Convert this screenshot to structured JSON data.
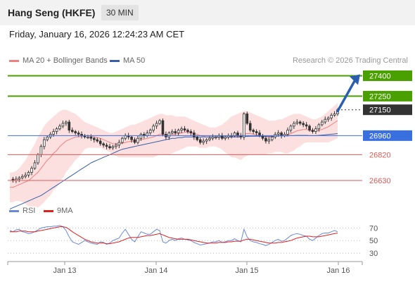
{
  "header": {
    "title": "Hang Seng (HKFE)",
    "timeframe": "30 MIN"
  },
  "datetime": "Friday, January 16, 2026 12:24:23 AM CET",
  "legend": {
    "ma20_bb": "MA 20 + Bollinger Bands",
    "ma50": "MA 50",
    "rsi": "RSI",
    "ma9": "9MA"
  },
  "credit": "Research © 2026 Trading Central",
  "colors": {
    "ma20": "#f08080",
    "bands": "#fbd6d6",
    "ma50": "#3a5fa8",
    "candle": "#333333",
    "resistance": "#4aa000",
    "support": "#e05a5a",
    "pivot": "#3a6fe0",
    "current": "#333333",
    "rsi": "#6a8ad8",
    "rsi_ma": "#dd2222",
    "arrow": "#2a5fb0"
  },
  "chart_data": {
    "type": "candlestick",
    "x_labels": [
      "Jan 13",
      "Jan 14",
      "Jan 15",
      "Jan 16"
    ],
    "y_range": [
      26480,
      27480
    ],
    "levels": [
      {
        "value": 27400,
        "label": "27400",
        "kind": "resistance"
      },
      {
        "value": 27250,
        "label": "27250",
        "kind": "resistance"
      },
      {
        "value": 27150,
        "label": "27150",
        "kind": "current"
      },
      {
        "value": 26960,
        "label": "26960",
        "kind": "pivot"
      },
      {
        "value": 26820,
        "label": "26820",
        "kind": "support"
      },
      {
        "value": 26630,
        "label": "26630",
        "kind": "support"
      }
    ],
    "close": [
      26640,
      26630,
      26640,
      26650,
      26660,
      26670,
      26690,
      26720,
      26760,
      26820,
      26880,
      26930,
      26950,
      26970,
      26990,
      27010,
      27030,
      27050,
      27060,
      27000,
      26990,
      26980,
      26970,
      26960,
      26950,
      26950,
      26940,
      26930,
      26920,
      26900,
      26890,
      26880,
      26870,
      26880,
      26890,
      26910,
      26940,
      26960,
      26950,
      26930,
      26910,
      26940,
      26970,
      26960,
      26980,
      27000,
      27030,
      27050,
      27070,
      26970,
      26950,
      26980,
      26990,
      26980,
      27000,
      27010,
      27000,
      26990,
      26980,
      26950,
      26930,
      26910,
      26920,
      26930,
      26940,
      26950,
      26950,
      26960,
      26940,
      26950,
      26960,
      26960,
      26980,
      26960,
      26950,
      27120,
      27050,
      27000,
      26990,
      26980,
      26960,
      26940,
      26920,
      26930,
      26950,
      26970,
      26980,
      26960,
      26970,
      27000,
      27030,
      27050,
      27060,
      27050,
      27040,
      27030,
      27000,
      26990,
      27010,
      27040,
      27060,
      27080,
      27090,
      27110,
      27120,
      27150
    ],
    "ma20": [
      26580,
      26580,
      26590,
      26600,
      26610,
      26620,
      26630,
      26650,
      26670,
      26690,
      26720,
      26750,
      26780,
      26800,
      26830,
      26850,
      26880,
      26900,
      26920,
      26930,
      26940,
      26950,
      26950,
      26955,
      26960,
      26960,
      26955,
      26950,
      26945,
      26940,
      26930,
      26920,
      26910,
      26900,
      26900,
      26900,
      26905,
      26910,
      26915,
      26920,
      26920,
      26925,
      26930,
      26935,
      26940,
      26945,
      26950,
      26960,
      26970,
      26970,
      26965,
      26965,
      26970,
      26970,
      26975,
      26980,
      26985,
      26985,
      26980,
      26975,
      26970,
      26960,
      26955,
      26950,
      26950,
      26950,
      26950,
      26950,
      26948,
      26948,
      26950,
      26950,
      26955,
      26955,
      26955,
      26970,
      26975,
      26975,
      26970,
      26965,
      26960,
      26955,
      26950,
      26950,
      26950,
      26955,
      26960,
      26960,
      26960,
      26965,
      26975,
      26985,
      26995,
      27000,
      27005,
      27005,
      27000,
      26995,
      26995,
      27000,
      27005,
      27015,
      27025,
      27040,
      27055,
      27070
    ],
    "bb_upper": [
      26690,
      26690,
      26700,
      26720,
      26750,
      26780,
      26820,
      26860,
      26900,
      26950,
      26990,
      27030,
      27060,
      27080,
      27100,
      27120,
      27140,
      27150,
      27150,
      27140,
      27130,
      27120,
      27100,
      27080,
      27060,
      27050,
      27040,
      27030,
      27020,
      27010,
      27000,
      26990,
      26980,
      26980,
      26990,
      27000,
      27010,
      27020,
      27030,
      27040,
      27040,
      27050,
      27060,
      27070,
      27080,
      27090,
      27100,
      27110,
      27120,
      27120,
      27110,
      27110,
      27110,
      27100,
      27100,
      27100,
      27100,
      27090,
      27080,
      27070,
      27060,
      27050,
      27040,
      27030,
      27020,
      27020,
      27020,
      27030,
      27040,
      27060,
      27080,
      27100,
      27110,
      27120,
      27130,
      27140,
      27140,
      27130,
      27120,
      27110,
      27100,
      27090,
      27080,
      27070,
      27070,
      27070,
      27080,
      27080,
      27090,
      27100,
      27110,
      27120,
      27120,
      27120,
      27110,
      27100,
      27090,
      27080,
      27080,
      27090,
      27100,
      27120,
      27140,
      27160,
      27180,
      27200
    ],
    "bb_lower": [
      26470,
      26470,
      26480,
      26480,
      26470,
      26460,
      26440,
      26440,
      26440,
      26430,
      26450,
      26470,
      26500,
      26520,
      26560,
      26580,
      26620,
      26650,
      26690,
      26720,
      26750,
      26780,
      26800,
      26830,
      26860,
      26870,
      26870,
      26870,
      26870,
      26870,
      26860,
      26850,
      26840,
      26820,
      26810,
      26800,
      26800,
      26800,
      26800,
      26800,
      26800,
      26800,
      26800,
      26800,
      26800,
      26800,
      26800,
      26810,
      26820,
      26820,
      26820,
      26820,
      26830,
      26840,
      26850,
      26860,
      26870,
      26880,
      26880,
      26880,
      26880,
      26870,
      26870,
      26870,
      26880,
      26880,
      26880,
      26870,
      26856,
      26836,
      26820,
      26800,
      26800,
      26790,
      26780,
      26800,
      26810,
      26820,
      26820,
      26820,
      26820,
      26820,
      26820,
      26830,
      26830,
      26840,
      26840,
      26840,
      26830,
      26830,
      26840,
      26850,
      26870,
      26880,
      26900,
      26910,
      26910,
      26910,
      26910,
      26910,
      26910,
      26910,
      26910,
      26920,
      26930,
      26940
    ],
    "ma50": [
      26420,
      26430,
      26440,
      26450,
      26460,
      26470,
      26480,
      26490,
      26500,
      26510,
      26520,
      26535,
      26550,
      26565,
      26580,
      26595,
      26610,
      26625,
      26640,
      26655,
      26670,
      26685,
      26700,
      26715,
      26730,
      26745,
      26760,
      26770,
      26780,
      26790,
      26800,
      26810,
      26820,
      26830,
      26840,
      26850,
      26860,
      26865,
      26870,
      26875,
      26880,
      26885,
      26890,
      26895,
      26900,
      26905,
      26910,
      26915,
      26920,
      26925,
      26930,
      26935,
      26940,
      26940,
      26945,
      26945,
      26950,
      26950,
      26950,
      26950,
      26950,
      26950,
      26950,
      26950,
      26950,
      26950,
      26950,
      26950,
      26950,
      26950,
      26950,
      26950,
      26950,
      26950,
      26950,
      26952,
      26954,
      26955,
      26955,
      26955,
      26955,
      26955,
      26955,
      26955,
      26955,
      26956,
      26958,
      26958,
      26958,
      26958,
      26960,
      26960,
      26962,
      26962,
      26962,
      26962,
      26960,
      26960,
      26960,
      26962,
      26964,
      26966,
      26968,
      26970,
      26972,
      26975
    ],
    "rsi": {
      "ticks": [
        70,
        50,
        30
      ],
      "range": [
        20,
        85
      ],
      "values": [
        66,
        64,
        67,
        68,
        64,
        63,
        61,
        62,
        64,
        67,
        70,
        71,
        72,
        72,
        73,
        73,
        74,
        72,
        66,
        56,
        48,
        46,
        44,
        47,
        50,
        48,
        46,
        45,
        44,
        48,
        47,
        44,
        46,
        50,
        52,
        54,
        62,
        68,
        60,
        52,
        48,
        56,
        64,
        62,
        60,
        60,
        64,
        68,
        66,
        48,
        46,
        50,
        52,
        50,
        53,
        54,
        52,
        51,
        50,
        47,
        45,
        43,
        44,
        45,
        46,
        48,
        48,
        50,
        47,
        48,
        50,
        50,
        53,
        50,
        48,
        68,
        56,
        50,
        48,
        47,
        45,
        44,
        42,
        44,
        47,
        50,
        52,
        49,
        50,
        54,
        58,
        60,
        61,
        60,
        58,
        57,
        52,
        50,
        54,
        58,
        61,
        62,
        62,
        64,
        66,
        64
      ],
      "ma9": [
        64,
        64,
        64,
        65,
        65,
        65,
        64,
        64,
        64,
        65,
        66,
        67,
        68,
        69,
        70,
        71,
        72,
        72,
        71,
        68,
        64,
        61,
        58,
        55,
        52,
        50,
        48,
        47,
        46,
        46,
        46,
        45,
        45,
        46,
        47,
        48,
        50,
        52,
        54,
        55,
        55,
        55,
        56,
        57,
        58,
        58,
        59,
        60,
        61,
        59,
        57,
        55,
        54,
        53,
        52,
        52,
        52,
        52,
        51,
        50,
        49,
        48,
        47,
        46,
        46,
        46,
        46,
        47,
        47,
        47,
        48,
        48,
        49,
        49,
        49,
        51,
        52,
        52,
        51,
        50,
        49,
        48,
        47,
        46,
        46,
        46,
        47,
        47,
        48,
        49,
        50,
        52,
        54,
        55,
        56,
        57,
        57,
        56,
        56,
        56,
        57,
        58,
        59,
        60,
        61,
        62
      ]
    }
  }
}
